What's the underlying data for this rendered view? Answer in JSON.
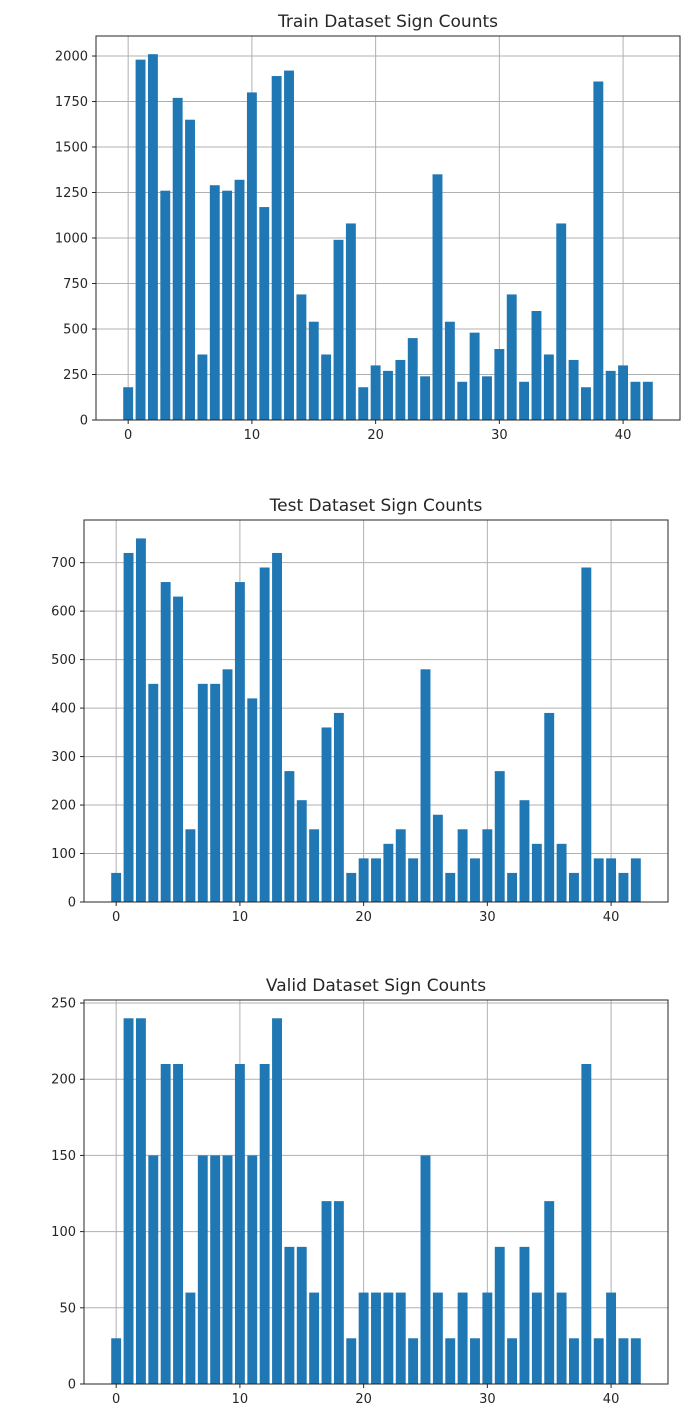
{
  "chart_data": [
    {
      "type": "bar",
      "title": "Train Dataset Sign Counts",
      "bar_color": "#1f77b4",
      "x": [
        0,
        1,
        2,
        3,
        4,
        5,
        6,
        7,
        8,
        9,
        10,
        11,
        12,
        13,
        14,
        15,
        16,
        17,
        18,
        19,
        20,
        21,
        22,
        23,
        24,
        25,
        26,
        27,
        28,
        29,
        30,
        31,
        32,
        33,
        34,
        35,
        36,
        37,
        38,
        39,
        40,
        41,
        42
      ],
      "values": [
        180,
        1980,
        2010,
        1260,
        1770,
        1650,
        360,
        1290,
        1260,
        1320,
        1800,
        1170,
        1890,
        1920,
        690,
        540,
        360,
        990,
        1080,
        180,
        300,
        270,
        330,
        450,
        240,
        1350,
        540,
        210,
        480,
        240,
        390,
        690,
        210,
        599,
        360,
        1080,
        330,
        180,
        1860,
        270,
        300,
        210,
        210
      ],
      "xticks": [
        0,
        10,
        20,
        30,
        40
      ],
      "xtick_labels": [
        "0",
        "10",
        "20",
        "30",
        "40"
      ],
      "yticks": [
        0,
        250,
        500,
        750,
        1000,
        1250,
        1500,
        1750,
        2000
      ],
      "ytick_labels": [
        "0",
        "250",
        "500",
        "750",
        "1000",
        "1250",
        "1500",
        "1750",
        "2000"
      ],
      "xlim": [
        -2.6,
        44.6
      ],
      "ylim": [
        0,
        2110
      ],
      "grid": true,
      "xlabel": "",
      "ylabel": ""
    },
    {
      "type": "bar",
      "title": "Test Dataset Sign Counts",
      "bar_color": "#1f77b4",
      "x": [
        0,
        1,
        2,
        3,
        4,
        5,
        6,
        7,
        8,
        9,
        10,
        11,
        12,
        13,
        14,
        15,
        16,
        17,
        18,
        19,
        20,
        21,
        22,
        23,
        24,
        25,
        26,
        27,
        28,
        29,
        30,
        31,
        32,
        33,
        34,
        35,
        36,
        37,
        38,
        39,
        40,
        41,
        42
      ],
      "values": [
        60,
        720,
        750,
        450,
        660,
        630,
        150,
        450,
        450,
        480,
        660,
        420,
        690,
        720,
        270,
        210,
        150,
        360,
        390,
        60,
        90,
        90,
        120,
        150,
        90,
        480,
        180,
        60,
        150,
        90,
        150,
        270,
        60,
        210,
        120,
        390,
        120,
        60,
        690,
        90,
        90,
        60,
        90
      ],
      "xticks": [
        0,
        10,
        20,
        30,
        40
      ],
      "xtick_labels": [
        "0",
        "10",
        "20",
        "30",
        "40"
      ],
      "yticks": [
        0,
        100,
        200,
        300,
        400,
        500,
        600,
        700
      ],
      "ytick_labels": [
        "0",
        "100",
        "200",
        "300",
        "400",
        "500",
        "600",
        "700"
      ],
      "xlim": [
        -2.6,
        44.6
      ],
      "ylim": [
        0,
        788
      ],
      "grid": true,
      "xlabel": "",
      "ylabel": ""
    },
    {
      "type": "bar",
      "title": "Valid Dataset Sign Counts",
      "bar_color": "#1f77b4",
      "x": [
        0,
        1,
        2,
        3,
        4,
        5,
        6,
        7,
        8,
        9,
        10,
        11,
        12,
        13,
        14,
        15,
        16,
        17,
        18,
        19,
        20,
        21,
        22,
        23,
        24,
        25,
        26,
        27,
        28,
        29,
        30,
        31,
        32,
        33,
        34,
        35,
        36,
        37,
        38,
        39,
        40,
        41,
        42
      ],
      "values": [
        30,
        240,
        240,
        150,
        210,
        210,
        60,
        150,
        150,
        150,
        210,
        150,
        210,
        240,
        90,
        90,
        60,
        120,
        120,
        30,
        60,
        60,
        60,
        60,
        30,
        150,
        60,
        30,
        60,
        30,
        60,
        90,
        30,
        90,
        60,
        120,
        60,
        30,
        210,
        30,
        60,
        30,
        30
      ],
      "xticks": [
        0,
        10,
        20,
        30,
        40
      ],
      "xtick_labels": [
        "0",
        "10",
        "20",
        "30",
        "40"
      ],
      "yticks": [
        0,
        50,
        100,
        150,
        200,
        250
      ],
      "ytick_labels": [
        "0",
        "50",
        "100",
        "150",
        "200",
        "250"
      ],
      "xlim": [
        -2.6,
        44.6
      ],
      "ylim": [
        0,
        252
      ],
      "grid": true,
      "xlabel": "",
      "ylabel": ""
    }
  ]
}
